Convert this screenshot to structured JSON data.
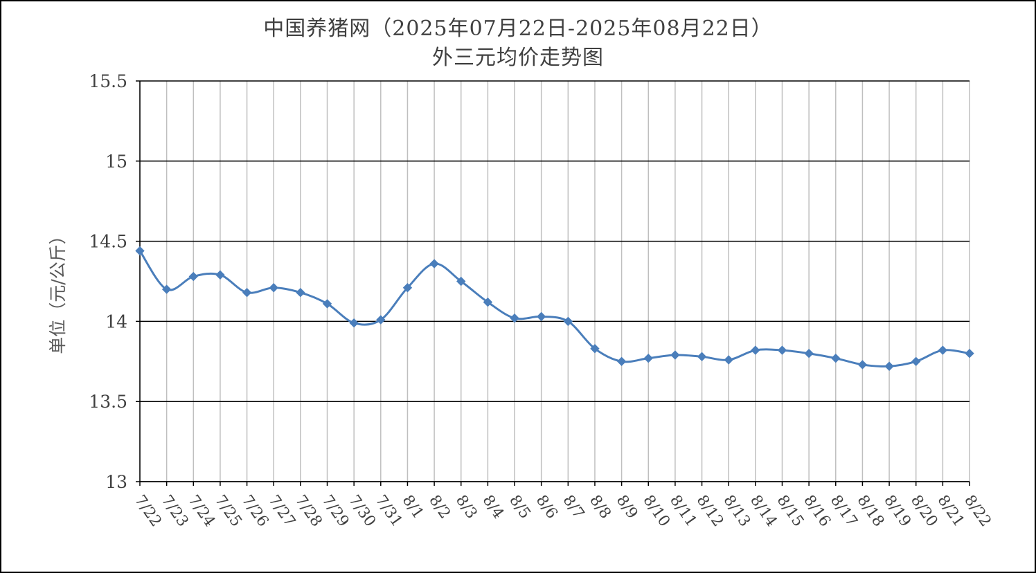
{
  "chart_data": {
    "type": "line",
    "title": "中国养猪网（2025年07月22日-2025年08月22日）",
    "subtitle": "外三元均价走势图",
    "xlabel": "",
    "ylabel": "单位（元/公斤）",
    "ylim": [
      13,
      15.5
    ],
    "yticks": [
      "13",
      "13.5",
      "14",
      "14.5",
      "15",
      "15.5"
    ],
    "ytick_values": [
      13,
      13.5,
      14,
      14.5,
      15,
      15.5
    ],
    "grid": "on",
    "legend": "none",
    "line_color": "#4A7EBB",
    "categories": [
      "7/22",
      "7/23",
      "7/24",
      "7/25",
      "7/26",
      "7/27",
      "7/28",
      "7/29",
      "7/30",
      "7/31",
      "8/1",
      "8/2",
      "8/3",
      "8/4",
      "8/5",
      "8/6",
      "8/7",
      "8/8",
      "8/9",
      "8/10",
      "8/11",
      "8/12",
      "8/13",
      "8/14",
      "8/15",
      "8/16",
      "8/17",
      "8/18",
      "8/19",
      "8/20",
      "8/21",
      "8/22"
    ],
    "series": [
      {
        "values": [
          14.44,
          14.2,
          14.28,
          14.29,
          14.18,
          14.21,
          14.18,
          14.11,
          13.99,
          14.01,
          14.21,
          14.36,
          14.25,
          14.12,
          14.02,
          14.03,
          14.0,
          13.83,
          13.75,
          13.77,
          13.79,
          13.78,
          13.76,
          13.82,
          13.82,
          13.8,
          13.77,
          13.73,
          13.72,
          13.75,
          13.82,
          13.8
        ]
      }
    ]
  }
}
